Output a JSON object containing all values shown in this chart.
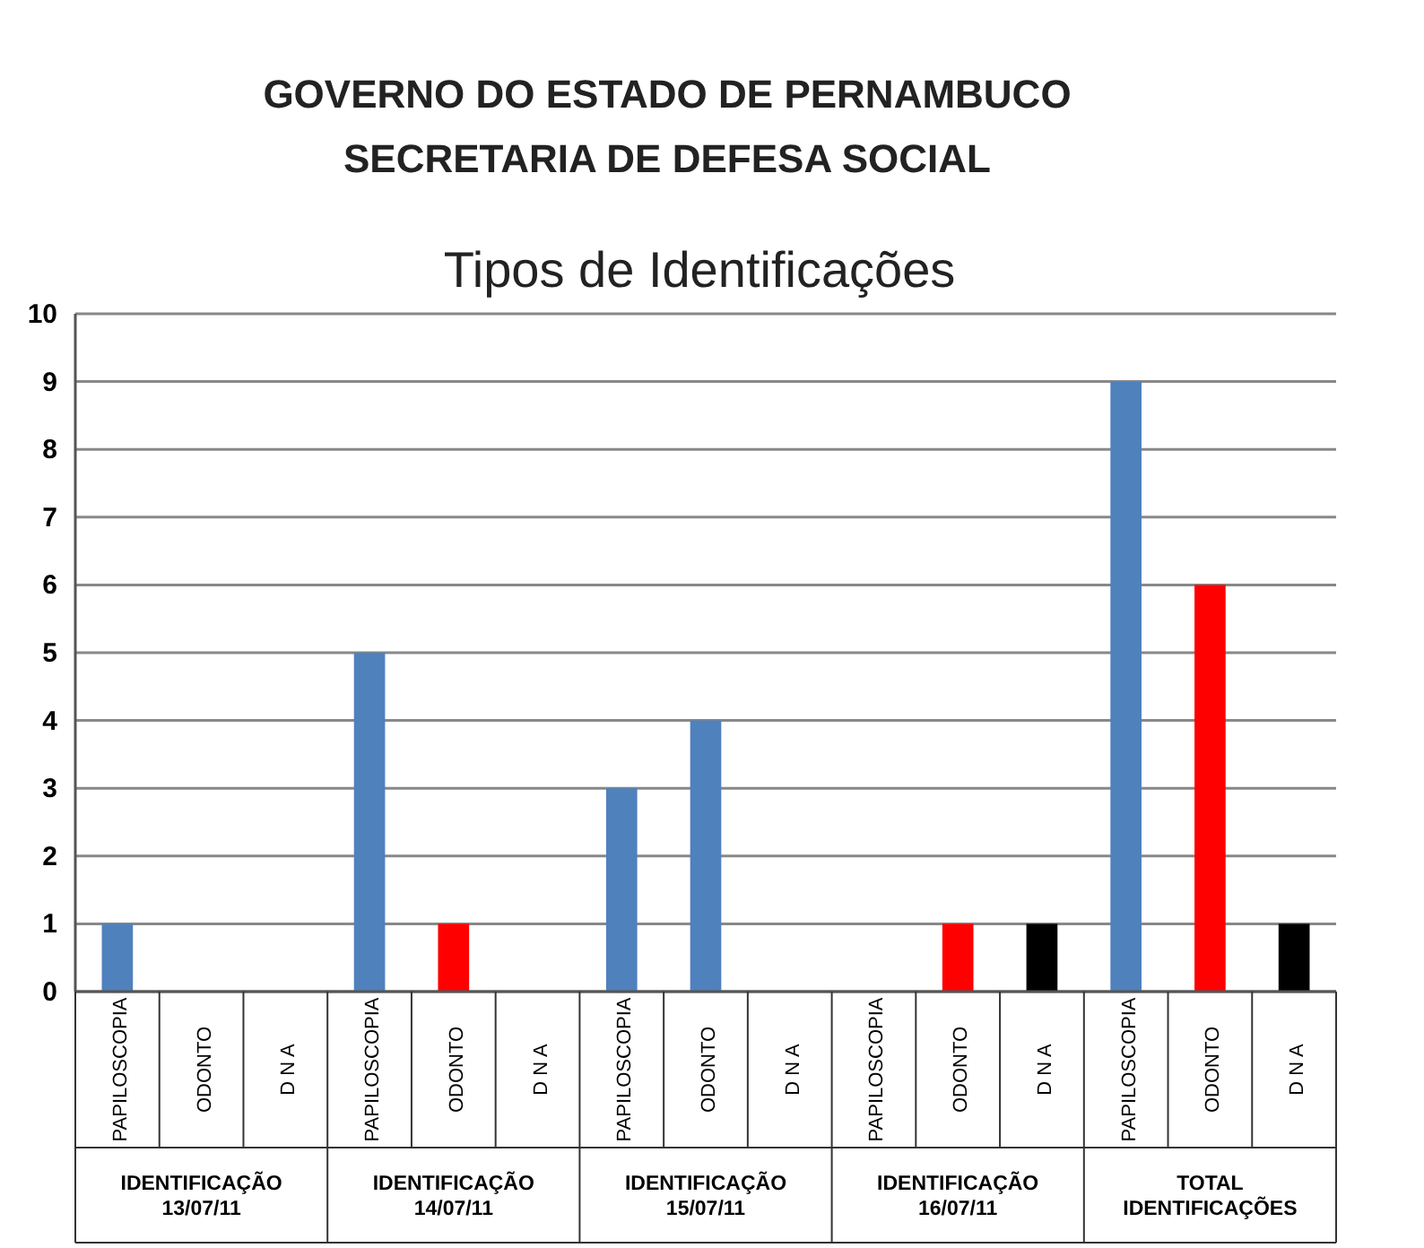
{
  "chart_data": {
    "type": "bar",
    "title": "Tipos de Identificações",
    "subtitle": "GOVERNO DO ESTADO DE PERNAMBUCO\nSECRETARIA DE DEFESA SOCIAL",
    "categories": [
      "PAPILOSCOPIA",
      "ODONTO",
      "D N A",
      "PAPILOSCOPIA",
      "ODONTO",
      "D N A",
      "PAPILOSCOPIA",
      "ODONTO",
      "D N A",
      "PAPILOSCOPIA",
      "ODONTO",
      "D N A",
      "PAPILOSCOPIA",
      "ODONTO",
      "D N A"
    ],
    "values": [
      1,
      0,
      0,
      5,
      1,
      0,
      3,
      4,
      0,
      0,
      1,
      1,
      9,
      6,
      1
    ],
    "colors": [
      "#4f81bd",
      "#ff0000",
      "#000000",
      "#4f81bd",
      "#ff0000",
      "#000000",
      "#4f81bd",
      "#4f81bd",
      "#000000",
      "#4f81bd",
      "#ff0000",
      "#000000",
      "#4f81bd",
      "#ff0000",
      "#000000"
    ],
    "annotations": [
      "IDENTIFICAÇÃO\n13/07/11",
      "IDENTIFICAÇÃO\n14/07/11",
      "IDENTIFICAÇÃO\n15/07/11",
      "IDENTIFICAÇÃO\n16/07/11",
      "TOTAL\nIDENTIFICAÇÕES"
    ],
    "ylim": [
      0,
      10
    ],
    "yticks": [
      0,
      1,
      2,
      3,
      4,
      5,
      6,
      7,
      8,
      9,
      10
    ],
    "grid": "y"
  }
}
